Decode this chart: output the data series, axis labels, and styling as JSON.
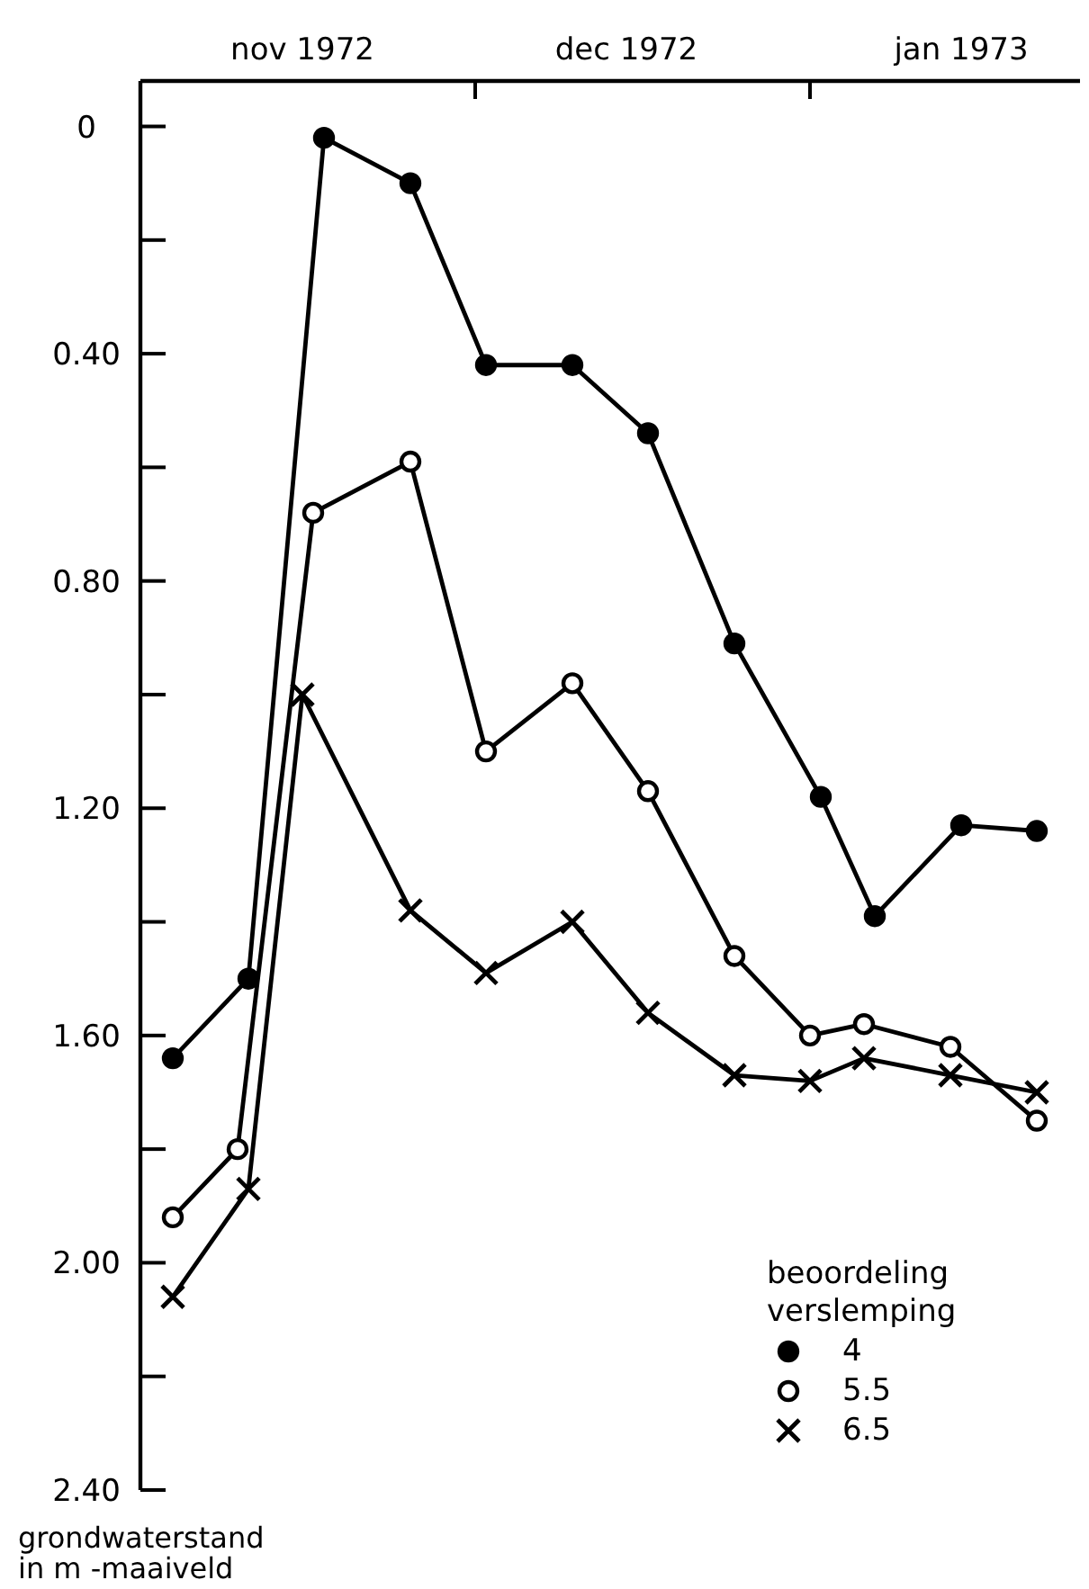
{
  "chart_data": {
    "type": "line",
    "ylabel": "grondwaterstand in m -maaiveld",
    "legend_title": "beoordeling verslemping",
    "legend": "bottom right",
    "grid": false,
    "line_style": "solid",
    "xlim": [
      "1972-10-31",
      "1973-01-26"
    ],
    "xticks": [
      {
        "value": "1972-11-15",
        "label": "nov 1972"
      },
      {
        "value": "1972-12-01",
        "label": null
      },
      {
        "value": "1972-12-15",
        "label": "dec 1972"
      },
      {
        "value": "1973-01-01",
        "label": null
      },
      {
        "value": "1973-01-15",
        "label": "jan 1973"
      }
    ],
    "ylim": [
      2.4,
      -0.08
    ],
    "yticks": [
      0,
      {
        "value": 0.2,
        "label": null
      },
      {
        "value": 0.4,
        "label": "0.40"
      },
      {
        "value": 0.6,
        "label": null
      },
      {
        "value": 0.8,
        "label": "0.80"
      },
      {
        "value": 1.0,
        "label": null
      },
      {
        "value": 1.2,
        "label": "1.20"
      },
      {
        "value": 1.4,
        "label": null
      },
      {
        "value": 1.6,
        "label": "1.60"
      },
      {
        "value": 1.8,
        "label": null
      },
      {
        "value": 2.0,
        "label": "2.00"
      },
      {
        "value": 2.2,
        "label": null
      },
      {
        "value": 2.4,
        "label": "2.40"
      }
    ],
    "series": [
      {
        "name": "4",
        "color": "#000000",
        "marker": "circle",
        "x": [
          "1972-11-03",
          "1972-11-10",
          "1972-11-17",
          "1972-11-25",
          "1972-12-02",
          "1972-12-10",
          "1972-12-17",
          "1972-12-25",
          "1973-01-02",
          "1973-01-07",
          "1973-01-15",
          "1973-01-22"
        ],
        "values": [
          1.64,
          1.5,
          0.02,
          0.1,
          0.42,
          0.42,
          0.54,
          0.91,
          1.18,
          1.39,
          1.23,
          1.24
        ]
      },
      {
        "name": "5.5",
        "color": "#000000",
        "marker": "open circle",
        "x": [
          "1972-11-03",
          "1972-11-09",
          "1972-11-16",
          "1972-11-25",
          "1972-12-02",
          "1972-12-10",
          "1972-12-17",
          "1972-12-25",
          "1973-01-01",
          "1973-01-06",
          "1973-01-14",
          "1973-01-22"
        ],
        "values": [
          1.92,
          1.8,
          0.68,
          0.59,
          1.1,
          0.98,
          1.17,
          1.46,
          1.6,
          1.58,
          1.62,
          1.75
        ]
      },
      {
        "name": "6.5",
        "color": "#000000",
        "marker": "cross",
        "x": [
          "1972-11-03",
          "1972-11-10",
          "1972-11-15",
          "1972-11-25",
          "1972-12-02",
          "1972-12-10",
          "1972-12-17",
          "1972-12-25",
          "1973-01-01",
          "1973-01-06",
          "1973-01-14",
          "1973-01-22"
        ],
        "values": [
          2.06,
          1.87,
          1.0,
          1.38,
          1.49,
          1.4,
          1.56,
          1.67,
          1.68,
          1.64,
          1.67,
          1.7
        ]
      }
    ]
  }
}
